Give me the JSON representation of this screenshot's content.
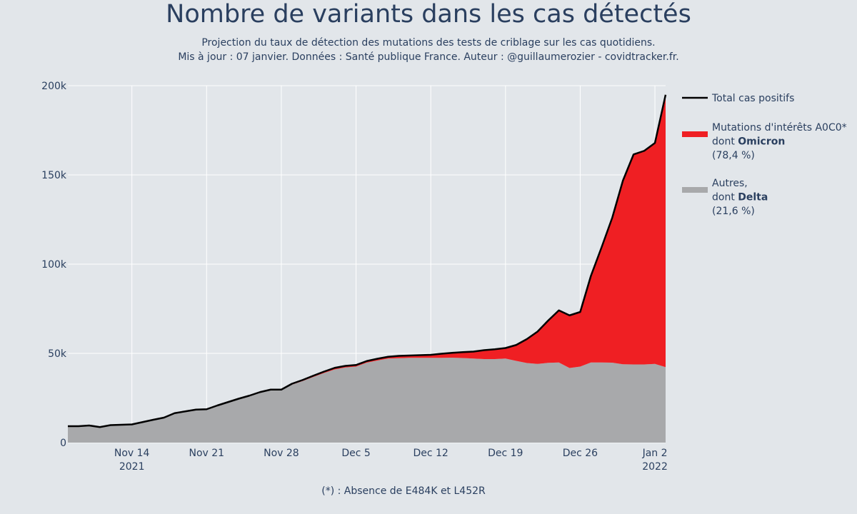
{
  "header": {
    "title": "Nombre de variants dans les cas détectés",
    "subtitle_line1": "Projection du taux de détection des mutations des tests de criblage sur les cas quotidiens.",
    "subtitle_line2": "Mis à jour : 07 janvier. Données : Santé publique France. Auteur : @guillaumerozier - covidtracker.fr."
  },
  "footnote": "(*) : Absence de E484K et L452R",
  "colors": {
    "background": "#e2e6ea",
    "grid": "#ffffff",
    "total_line": "#000000",
    "omicron_fill": "#ef1f23",
    "other_fill": "#a8a9ab",
    "text": "#2a3f5f"
  },
  "legend": [
    {
      "lines": [
        "Total cas positifs"
      ],
      "bold": [],
      "symbol": "line"
    },
    {
      "lines": [
        "Mutations d'intérêts A0C0*",
        "dont Omicron",
        " (78,4 %)"
      ],
      "bold": [
        "Omicron"
      ],
      "symbol": "fill-red"
    },
    {
      "lines": [
        "Autres,",
        "dont Delta",
        " (21,6 %)"
      ],
      "bold": [
        "Delta"
      ],
      "symbol": "fill-gray"
    }
  ],
  "chart_data": {
    "type": "area",
    "x_start": "2021-11-08",
    "x_end": "2022-01-03",
    "xticks": [
      {
        "date": "2021-11-14",
        "label": "Nov 14",
        "label2": "2021"
      },
      {
        "date": "2021-11-21",
        "label": "Nov 21",
        "label2": ""
      },
      {
        "date": "2021-11-28",
        "label": "Nov 28",
        "label2": ""
      },
      {
        "date": "2021-12-05",
        "label": "Dec 5",
        "label2": ""
      },
      {
        "date": "2021-12-12",
        "label": "Dec 12",
        "label2": ""
      },
      {
        "date": "2021-12-19",
        "label": "Dec 19",
        "label2": ""
      },
      {
        "date": "2021-12-26",
        "label": "Dec 26",
        "label2": ""
      },
      {
        "date": "2022-01-02",
        "label": "Jan 2",
        "label2": "2022"
      }
    ],
    "yticks": [
      {
        "value": 0,
        "label": "0"
      },
      {
        "value": 50000,
        "label": "50k"
      },
      {
        "value": 100000,
        "label": "100k"
      },
      {
        "value": 150000,
        "label": "150k"
      },
      {
        "value": 200000,
        "label": "200k"
      }
    ],
    "ylim": [
      0,
      200000
    ],
    "grid": true,
    "legend_position": "right",
    "x": [
      "2021-11-08",
      "2021-11-09",
      "2021-11-10",
      "2021-11-11",
      "2021-11-12",
      "2021-11-13",
      "2021-11-14",
      "2021-11-15",
      "2021-11-16",
      "2021-11-17",
      "2021-11-18",
      "2021-11-19",
      "2021-11-20",
      "2021-11-21",
      "2021-11-22",
      "2021-11-23",
      "2021-11-24",
      "2021-11-25",
      "2021-11-26",
      "2021-11-27",
      "2021-11-28",
      "2021-11-29",
      "2021-11-30",
      "2021-12-01",
      "2021-12-02",
      "2021-12-03",
      "2021-12-04",
      "2021-12-05",
      "2021-12-06",
      "2021-12-07",
      "2021-12-08",
      "2021-12-09",
      "2021-12-10",
      "2021-12-11",
      "2021-12-12",
      "2021-12-13",
      "2021-12-14",
      "2021-12-15",
      "2021-12-16",
      "2021-12-17",
      "2021-12-18",
      "2021-12-19",
      "2021-12-20",
      "2021-12-21",
      "2021-12-22",
      "2021-12-23",
      "2021-12-24",
      "2021-12-25",
      "2021-12-26",
      "2021-12-27",
      "2021-12-28",
      "2021-12-29",
      "2021-12-30",
      "2021-12-31",
      "2022-01-01",
      "2022-01-02",
      "2022-01-03"
    ],
    "series": [
      {
        "name": "Autres, dont Delta",
        "values": [
          9200,
          9200,
          9600,
          8700,
          9800,
          10000,
          10200,
          11500,
          12800,
          14000,
          16500,
          17500,
          18500,
          18700,
          20800,
          22700,
          24600,
          26300,
          28300,
          29300,
          29300,
          32500,
          34500,
          36800,
          39000,
          41000,
          42100,
          42600,
          44800,
          46000,
          47100,
          47300,
          47500,
          47500,
          47500,
          47500,
          47600,
          47400,
          47100,
          46800,
          46800,
          47100,
          45800,
          44600,
          44100,
          44700,
          44900,
          41800,
          42600,
          44900,
          44900,
          44800,
          43900,
          43800,
          43800,
          44100,
          42300
        ]
      },
      {
        "name": "Mutations d'intérêts A0C0* dont Omicron",
        "values": [
          0,
          0,
          0,
          0,
          0,
          0,
          0,
          0,
          0,
          0,
          0,
          0,
          0,
          0,
          0,
          0,
          0,
          0,
          0,
          400,
          400,
          500,
          600,
          700,
          800,
          900,
          900,
          900,
          900,
          1000,
          1000,
          1300,
          1300,
          1500,
          1700,
          2300,
          2700,
          3300,
          3900,
          5000,
          5500,
          5900,
          8900,
          13400,
          18100,
          23700,
          29200,
          29500,
          30600,
          48500,
          64500,
          81200,
          102900,
          117700,
          119700,
          123800,
          152600
        ]
      }
    ],
    "total": {
      "name": "Total cas positifs",
      "values": [
        9200,
        9200,
        9600,
        8700,
        9800,
        10000,
        10200,
        11500,
        12800,
        14000,
        16500,
        17500,
        18500,
        18700,
        20800,
        22700,
        24600,
        26300,
        28300,
        29700,
        29700,
        33000,
        35100,
        37500,
        39800,
        41900,
        43000,
        43500,
        45700,
        47000,
        48100,
        48600,
        48800,
        49000,
        49200,
        49800,
        50300,
        50700,
        51000,
        51800,
        52300,
        53000,
        54700,
        58000,
        62200,
        68400,
        74100,
        71300,
        73200,
        93400,
        109400,
        126000,
        146800,
        161500,
        163500,
        167900,
        194900
      ]
    }
  }
}
